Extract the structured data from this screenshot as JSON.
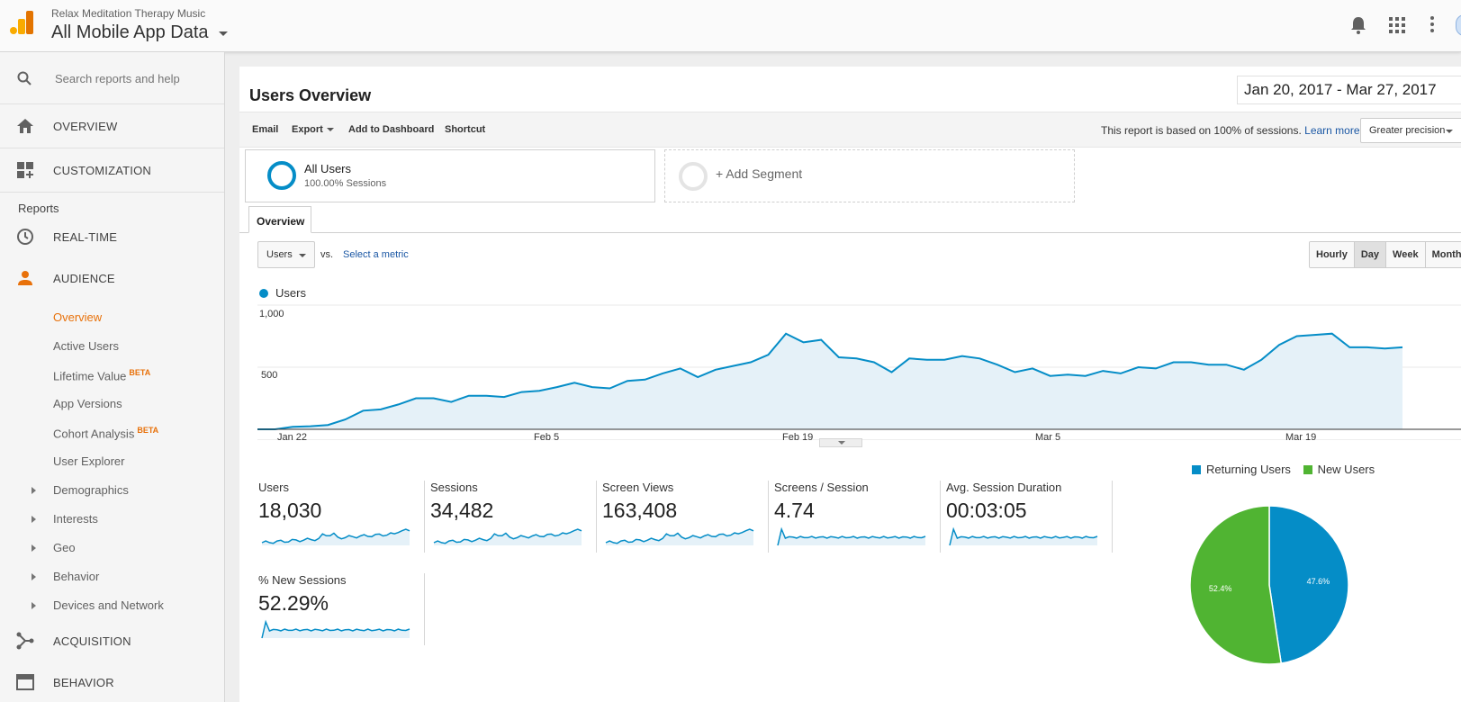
{
  "header": {
    "account_small": "Relax Meditation Therapy Music",
    "account_view": "All Mobile App Data",
    "icons": [
      "bell-icon",
      "apps-grid-icon",
      "more-vert-icon"
    ]
  },
  "sidebar": {
    "search_placeholder": "Search reports and help",
    "top_items": [
      {
        "label": "OVERVIEW",
        "icon": "home-icon"
      },
      {
        "label": "CUSTOMIZATION",
        "icon": "dashboard-plus-icon"
      }
    ],
    "reports_label": "Reports",
    "realtime": "REAL-TIME",
    "audience": "AUDIENCE",
    "audience_items": [
      {
        "label": "Overview",
        "active": true
      },
      {
        "label": "Active Users"
      },
      {
        "label": "Lifetime Value",
        "badge": "BETA"
      },
      {
        "label": "App Versions"
      },
      {
        "label": "Cohort Analysis",
        "badge": "BETA"
      },
      {
        "label": "User Explorer"
      },
      {
        "label": "Demographics",
        "expandable": true
      },
      {
        "label": "Interests",
        "expandable": true
      },
      {
        "label": "Geo",
        "expandable": true
      },
      {
        "label": "Behavior",
        "expandable": true
      },
      {
        "label": "Devices and Network",
        "expandable": true
      }
    ],
    "acquisition": "ACQUISITION",
    "behavior": "BEHAVIOR"
  },
  "report": {
    "title": "Users Overview",
    "date_range": "Jan 20, 2017 - Mar 27, 2017",
    "toolbar": {
      "email": "Email",
      "export": "Export",
      "add_dashboard": "Add to Dashboard",
      "shortcut": "Shortcut",
      "basis_text": "This report is based on 100% of sessions.",
      "learn_more": "Learn more",
      "precision": "Greater precision"
    },
    "segment": {
      "name": "All Users",
      "sub": "100.00% Sessions",
      "add": "+ Add Segment"
    },
    "tab": "Overview",
    "metric_select": "Users",
    "vs": "vs.",
    "select_metric": "Select a metric",
    "granularity": [
      "Hourly",
      "Day",
      "Week",
      "Month"
    ],
    "granularity_selected": "Day"
  },
  "chart_data": [
    {
      "type": "area",
      "title": "",
      "legend": [
        "Users"
      ],
      "color": "#058dc7",
      "x_tick_labels": [
        "Jan 22",
        "Feb 5",
        "Feb 19",
        "Mar 5",
        "Mar 19"
      ],
      "ylim": [
        0,
        1000
      ],
      "y_tick_labels": [
        "1,000",
        "500"
      ],
      "series": [
        {
          "name": "Users",
          "values": [
            0,
            0,
            20,
            25,
            35,
            80,
            150,
            160,
            200,
            250,
            250,
            220,
            270,
            270,
            260,
            300,
            310,
            340,
            375,
            340,
            330,
            390,
            400,
            450,
            490,
            420,
            480,
            510,
            540,
            600,
            770,
            700,
            720,
            580,
            570,
            540,
            460,
            570,
            560,
            560,
            590,
            570,
            520,
            460,
            490,
            430,
            440,
            430,
            470,
            450,
            500,
            490,
            540,
            540,
            520,
            520,
            480,
            560,
            680,
            750,
            760,
            770,
            660,
            660,
            650,
            660
          ]
        }
      ]
    },
    {
      "type": "pie",
      "legend": [
        "Returning Users",
        "New Users"
      ],
      "slices": [
        {
          "name": "Returning Users",
          "value": 47.6,
          "label": "47.6%",
          "color": "#058dc7"
        },
        {
          "name": "New Users",
          "value": 52.4,
          "label": "52.4%",
          "color": "#50b432"
        }
      ]
    }
  ],
  "metrics": [
    {
      "label": "Users",
      "value": "18,030"
    },
    {
      "label": "Sessions",
      "value": "34,482"
    },
    {
      "label": "Screen Views",
      "value": "163,408"
    },
    {
      "label": "Screens / Session",
      "value": "4.74"
    },
    {
      "label": "Avg. Session Duration",
      "value": "00:03:05"
    },
    {
      "label": "% New Sessions",
      "value": "52.29%"
    }
  ]
}
